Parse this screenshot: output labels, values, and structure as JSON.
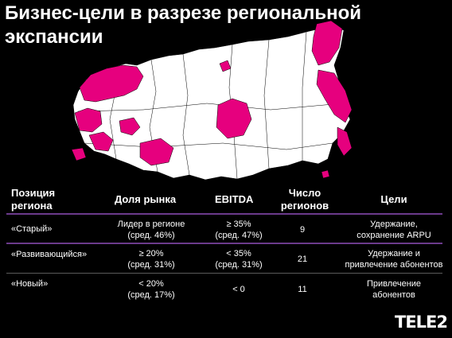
{
  "title_line1": "Бизнес-цели в разрезе региональной",
  "title_line2": "экспансии",
  "colors": {
    "background": "#000000",
    "highlight": "#e6007e",
    "region": "#ffffff",
    "rule": "#6b3a8c"
  },
  "table": {
    "headers": {
      "position_line1": "Позиция",
      "position_line2": "региона",
      "market_share": "Доля рынка",
      "ebitda": "EBITDA",
      "count_line1": "Число",
      "count_line2": "регионов",
      "goals": "Цели"
    },
    "rows": [
      {
        "position": "«Старый»",
        "share_line1": "Лидер в регионе",
        "share_line2": "(сред. 46%)",
        "ebitda_line1": "≥ 35%",
        "ebitda_line2": "(сред. 47%)",
        "count": "9",
        "goals_line1": "Удержание,",
        "goals_line2": "сохранение ARPU"
      },
      {
        "position": "«Развивающийся»",
        "share_line1": "≥ 20%",
        "share_line2": "(сред. 31%)",
        "ebitda_line1": "< 35%",
        "ebitda_line2": "(сред. 31%)",
        "count": "21",
        "goals_line1": "Удержание и",
        "goals_line2": "привлечение абонентов"
      },
      {
        "position": "«Новый»",
        "share_line1": "< 20%",
        "share_line2": "(сред. 17%)",
        "ebitda_line1": "< 0",
        "ebitda_line2": "",
        "count": "11",
        "goals_line1": "Привлечение",
        "goals_line2": "абонентов"
      }
    ]
  },
  "logo_text": "TELE2"
}
